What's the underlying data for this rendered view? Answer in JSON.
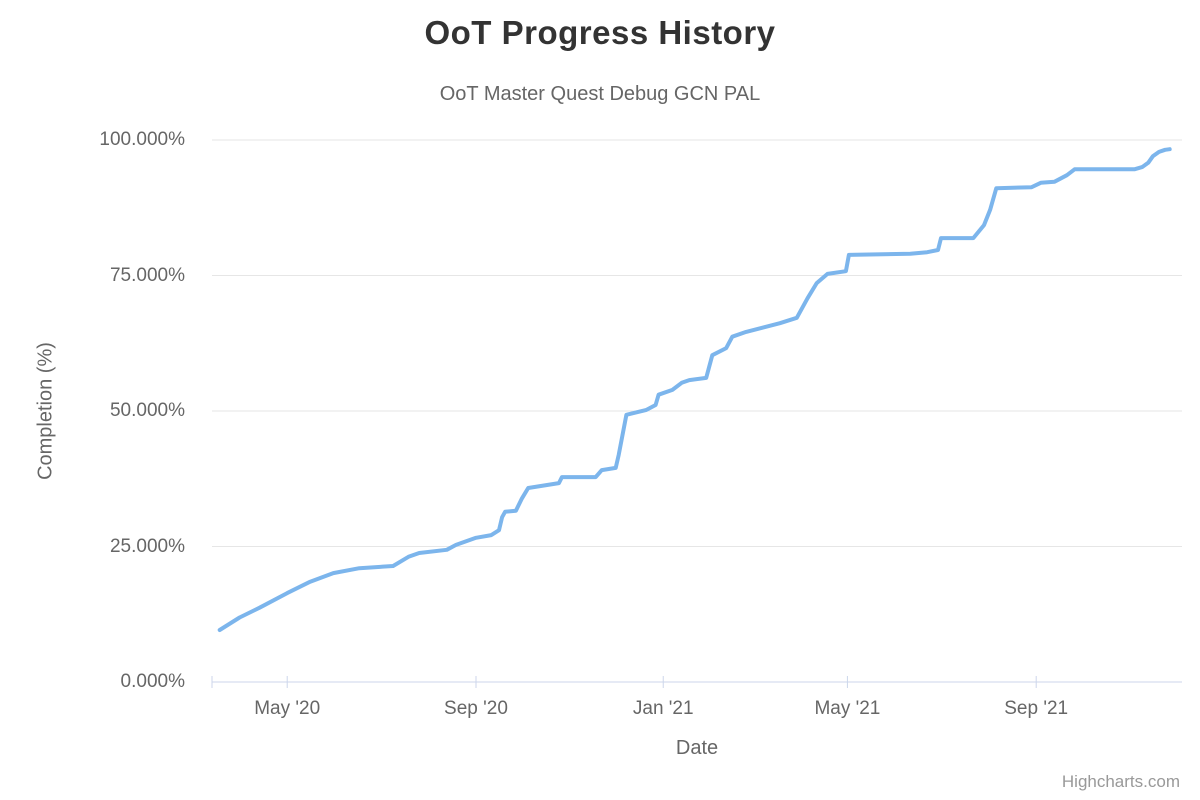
{
  "credit": "Highcharts.com",
  "colors": {
    "series_line": "#7cb5ec",
    "gridline": "#e6e6e6",
    "axis_line": "#ccd6eb",
    "tick_mark": "#ccd6eb",
    "title_text": "#333333",
    "muted_text": "#666666",
    "credit_text": "#999999",
    "background": "#ffffff"
  },
  "chart_data": {
    "type": "line",
    "title": "OoT Progress History",
    "subtitle": "OoT Master Quest Debug GCN PAL",
    "xlabel": "Date",
    "ylabel": "Completion (%)",
    "x_type": "datetime",
    "x_range": [
      "2020-03-13",
      "2021-12-05"
    ],
    "ylim": [
      0,
      100
    ],
    "grid": "horizontal-only",
    "legend": "none",
    "markers": "none",
    "y_ticks": [
      {
        "value": 100,
        "label": "100.000%"
      },
      {
        "value": 75,
        "label": "75.000%"
      },
      {
        "value": 50,
        "label": "50.000%"
      },
      {
        "value": 25,
        "label": "25.000%"
      },
      {
        "value": 0,
        "label": "0.000%"
      }
    ],
    "x_ticks": [
      {
        "date": "2020-05-01",
        "label": "May '20"
      },
      {
        "date": "2020-09-01",
        "label": "Sep '20"
      },
      {
        "date": "2021-01-01",
        "label": "Jan '21"
      },
      {
        "date": "2021-05-01",
        "label": "May '21"
      },
      {
        "date": "2021-09-01",
        "label": "Sep '21"
      }
    ],
    "series": [
      {
        "name": "Completion",
        "color": "#7cb5ec",
        "points": [
          [
            "2020-03-18",
            9.6
          ],
          [
            "2020-03-31",
            11.9
          ],
          [
            "2020-04-13",
            13.7
          ],
          [
            "2020-05-01",
            16.4
          ],
          [
            "2020-05-16",
            18.5
          ],
          [
            "2020-05-31",
            20.1
          ],
          [
            "2020-06-17",
            21.0
          ],
          [
            "2020-07-09",
            21.4
          ],
          [
            "2020-07-19",
            23.1
          ],
          [
            "2020-07-26",
            23.8
          ],
          [
            "2020-08-13",
            24.4
          ],
          [
            "2020-08-19",
            25.3
          ],
          [
            "2020-09-01",
            26.6
          ],
          [
            "2020-09-11",
            27.1
          ],
          [
            "2020-09-16",
            28.0
          ],
          [
            "2020-09-18",
            30.4
          ],
          [
            "2020-09-20",
            31.4
          ],
          [
            "2020-09-27",
            31.6
          ],
          [
            "2020-10-01",
            33.9
          ],
          [
            "2020-10-05",
            35.8
          ],
          [
            "2020-10-25",
            36.7
          ],
          [
            "2020-10-27",
            37.8
          ],
          [
            "2020-11-18",
            37.8
          ],
          [
            "2020-11-22",
            39.1
          ],
          [
            "2020-12-01",
            39.5
          ],
          [
            "2020-12-03",
            41.9
          ],
          [
            "2020-12-08",
            49.3
          ],
          [
            "2020-12-21",
            50.2
          ],
          [
            "2020-12-27",
            51.1
          ],
          [
            "2020-12-29",
            53.0
          ],
          [
            "2021-01-07",
            53.9
          ],
          [
            "2021-01-13",
            55.2
          ],
          [
            "2021-01-18",
            55.7
          ],
          [
            "2021-01-29",
            56.1
          ],
          [
            "2021-02-02",
            60.3
          ],
          [
            "2021-02-11",
            61.6
          ],
          [
            "2021-02-15",
            63.7
          ],
          [
            "2021-02-24",
            64.6
          ],
          [
            "2021-03-18",
            66.2
          ],
          [
            "2021-03-29",
            67.2
          ],
          [
            "2021-04-05",
            70.8
          ],
          [
            "2021-04-11",
            73.6
          ],
          [
            "2021-04-18",
            75.3
          ],
          [
            "2021-04-30",
            75.8
          ],
          [
            "2021-05-02",
            78.8
          ],
          [
            "2021-06-11",
            79.0
          ],
          [
            "2021-06-22",
            79.3
          ],
          [
            "2021-06-29",
            79.7
          ],
          [
            "2021-07-01",
            81.9
          ],
          [
            "2021-07-22",
            81.9
          ],
          [
            "2021-07-29",
            84.3
          ],
          [
            "2021-08-02",
            87.1
          ],
          [
            "2021-08-06",
            91.1
          ],
          [
            "2021-08-29",
            91.3
          ],
          [
            "2021-09-04",
            92.1
          ],
          [
            "2021-09-13",
            92.3
          ],
          [
            "2021-09-21",
            93.5
          ],
          [
            "2021-09-26",
            94.6
          ],
          [
            "2021-11-04",
            94.6
          ],
          [
            "2021-11-09",
            95.0
          ],
          [
            "2021-11-13",
            95.8
          ],
          [
            "2021-11-16",
            97.0
          ],
          [
            "2021-11-20",
            97.8
          ],
          [
            "2021-11-24",
            98.2
          ],
          [
            "2021-11-27",
            98.3
          ]
        ]
      }
    ]
  }
}
